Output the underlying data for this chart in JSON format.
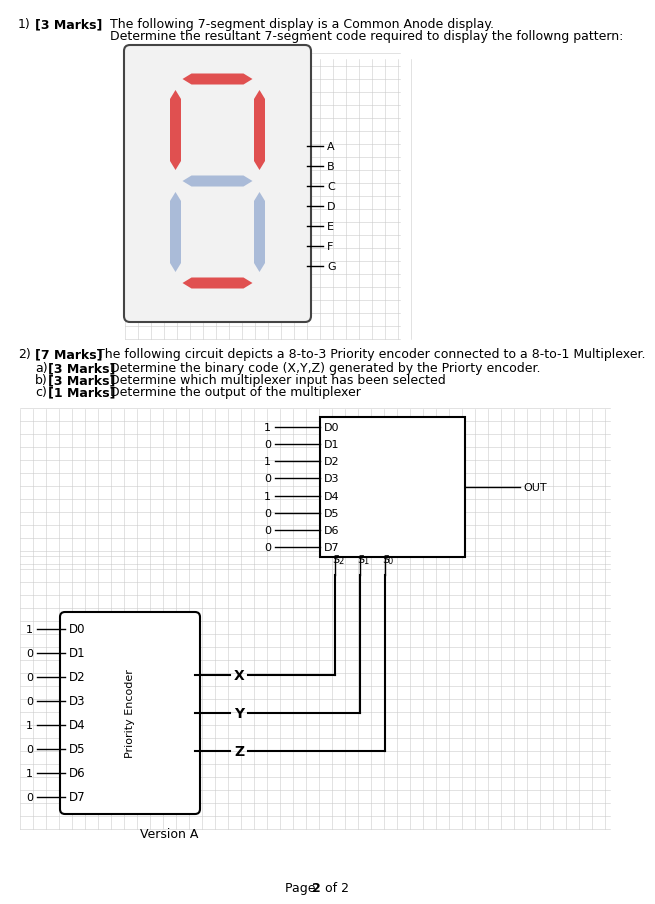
{
  "title_q1_num": "1)",
  "title_q1_marks": "[3 Marks]",
  "title_q1_text": "The following 7-segment display is a Common Anode display.",
  "title_q1_text2": "Determine the resultant 7-segment code required to display the followng pattern:",
  "title_q2_num": "2)",
  "title_q2_marks": "[7 Marks]",
  "title_q2_text": "The following circuit depicts a 8-to-3 Priority encoder connected to a 8-to-1 Multiplexer.",
  "q2a_marks": "[3 Marks]",
  "q2a_text": "Determine the binary code (X,Y,Z) generated by the Priorty encoder.",
  "q2b_marks": "[3 Marks]",
  "q2b_text": "Determine which multiplexer input has been selected",
  "q2c_marks": "[1 Marks]",
  "q2c_text": "Determine the output of the multiplexer",
  "seg_active_color": "#e05050",
  "seg_inactive_color": "#aabbd8",
  "seg_bg_color": "#f2f2f2",
  "grid_color": "#cccccc",
  "page_bg": "#ffffff",
  "mux_inputs": [
    "1",
    "0",
    "1",
    "0",
    "1",
    "0",
    "0",
    "0"
  ],
  "mux_labels": [
    "D0",
    "D1",
    "D2",
    "D3",
    "D4",
    "D5",
    "D6",
    "D7"
  ],
  "mux_sel_labels": [
    "S2",
    "S1",
    "S0"
  ],
  "pe_inputs": [
    "1",
    "0",
    "0",
    "0",
    "1",
    "0",
    "1",
    "0"
  ],
  "pe_labels": [
    "D0",
    "D1",
    "D2",
    "D3",
    "D4",
    "D5",
    "D6",
    "D7"
  ],
  "pe_outputs": [
    "X",
    "Y",
    "Z"
  ],
  "seg_A": true,
  "seg_B": true,
  "seg_C": false,
  "seg_D": true,
  "seg_E": false,
  "seg_F": true,
  "seg_G": false
}
